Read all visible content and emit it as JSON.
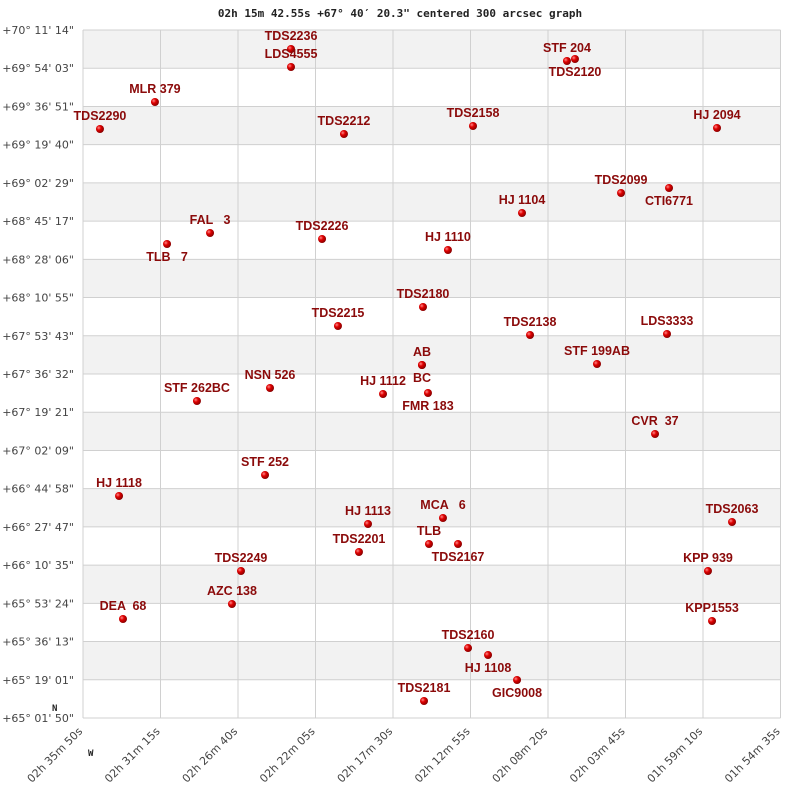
{
  "chart_data": {
    "type": "scatter",
    "title": "02h 15m 42.55s +67° 40′ 20.3\" centered 300 arcsec graph",
    "xlabel": "",
    "ylabel": "",
    "x_unit": "RA (hours)",
    "y_unit": "Dec (degrees)",
    "xlim": [
      2.59722,
      1.90972
    ],
    "ylim": [
      65.03056,
      70.18722
    ],
    "grid": true,
    "banded_rows": true,
    "compass": {
      "north": "N",
      "west": "W"
    },
    "x_ticks": [
      "02h 35m 50s",
      "02h 31m 15s",
      "02h 26m 40s",
      "02h 22m 05s",
      "02h 17m 30s",
      "02h 12m 55s",
      "02h 08m 20s",
      "02h 03m 45s",
      "01h 59m 10s",
      "01h 54m 35s"
    ],
    "y_ticks": [
      "+70° 11' 14\"",
      "+69° 54' 03\"",
      "+69° 36' 51\"",
      "+69° 19' 40\"",
      "+69° 02' 29\"",
      "+68° 45' 17\"",
      "+68° 28' 06\"",
      "+68° 10' 55\"",
      "+67° 53' 43\"",
      "+67° 36' 32\"",
      "+67° 19' 21\"",
      "+67° 02' 09\"",
      "+66° 44' 58\"",
      "+66° 27' 47\"",
      "+66° 10' 35\"",
      "+65° 53' 24\"",
      "+65° 36' 13\"",
      "+65° 19' 01\"",
      "+65° 01' 50\""
    ],
    "colors": {
      "point": "#d00000",
      "label": "#8b0a0a",
      "band": "#f2f2f2",
      "grid": "#d0d0d0"
    },
    "points": [
      {
        "name": "TDS2236",
        "ra": 2.3922,
        "dec": 70.0448
      },
      {
        "name": "LDS4555",
        "ra": 2.3922,
        "dec": 69.9099
      },
      {
        "name": "STF 204",
        "ra": 2.1202,
        "dec": 69.9549
      },
      {
        "name": "TDS2120",
        "ra": 2.1123,
        "dec": 69.9699
      },
      {
        "name": "MLR 379",
        "ra": 2.5263,
        "dec": 69.6476
      },
      {
        "name": "TDS2290",
        "ra": 2.5805,
        "dec": 69.4452
      },
      {
        "name": "TDS2212",
        "ra": 2.34,
        "dec": 69.4077
      },
      {
        "name": "TDS2158",
        "ra": 2.2128,
        "dec": 69.4677
      },
      {
        "name": "HJ 2094",
        "ra": 1.9723,
        "dec": 69.4527
      },
      {
        "name": "TDS2099",
        "ra": 2.0669,
        "dec": 68.9655
      },
      {
        "name": "CTI6771",
        "ra": 2.0196,
        "dec": 69.003
      },
      {
        "name": "HJ 1104",
        "ra": 2.1645,
        "dec": 68.8156
      },
      {
        "name": "FAL   3",
        "ra": 2.472,
        "dec": 68.6657
      },
      {
        "name": "TLB   7",
        "ra": 2.5144,
        "dec": 68.5832
      },
      {
        "name": "TDS2226",
        "ra": 2.3616,
        "dec": 68.6207
      },
      {
        "name": "HJ 1110",
        "ra": 2.2375,
        "dec": 68.5383
      },
      {
        "name": "TDS2180",
        "ra": 2.2621,
        "dec": 68.111
      },
      {
        "name": "TDS2215",
        "ra": 2.3459,
        "dec": 67.9686
      },
      {
        "name": "TDS2138",
        "ra": 2.1566,
        "dec": 67.9012
      },
      {
        "name": "LDS3333",
        "ra": 2.0216,
        "dec": 67.9087
      },
      {
        "name": "AB",
        "ra": 2.2631,
        "dec": 67.6763
      },
      {
        "name": "BC",
        "ra": 2.2631,
        "dec": 67.6763
      },
      {
        "name": "STF 199AB",
        "ra": 2.0906,
        "dec": 67.6838
      },
      {
        "name": "STF 262BC",
        "ra": 2.4849,
        "dec": 67.4065
      },
      {
        "name": "NSN 526",
        "ra": 2.4129,
        "dec": 67.5039
      },
      {
        "name": "HJ 1112",
        "ra": 2.3015,
        "dec": 67.4589
      },
      {
        "name": "FMR 183",
        "ra": 2.2572,
        "dec": 67.4664
      },
      {
        "name": "CVR  37",
        "ra": 2.0334,
        "dec": 67.1591
      },
      {
        "name": "STF 252",
        "ra": 2.4178,
        "dec": 66.8518
      },
      {
        "name": "HJ 1118",
        "ra": 2.5617,
        "dec": 66.6944
      },
      {
        "name": "HJ 1113",
        "ra": 2.3163,
        "dec": 66.4845
      },
      {
        "name": "MCA   6",
        "ra": 2.2424,
        "dec": 66.5295
      },
      {
        "name": "TDS2063",
        "ra": 1.9575,
        "dec": 66.4995
      },
      {
        "name": "TDS2201",
        "ra": 2.3252,
        "dec": 66.2747
      },
      {
        "name": "TLB",
        "ra": 2.2562,
        "dec": 66.3346
      },
      {
        "name": "TDS2167",
        "ra": 2.2276,
        "dec": 66.3346
      },
      {
        "name": "TDS2249",
        "ra": 2.4415,
        "dec": 66.1323
      },
      {
        "name": "KPP 939",
        "ra": 1.9812,
        "dec": 66.1323
      },
      {
        "name": "AZC 138",
        "ra": 2.4504,
        "dec": 65.8849
      },
      {
        "name": "DEA  68",
        "ra": 2.5578,
        "dec": 65.7725
      },
      {
        "name": "KPP1553",
        "ra": 1.9772,
        "dec": 65.7575
      },
      {
        "name": "TDS2160",
        "ra": 2.2177,
        "dec": 65.5551
      },
      {
        "name": "HJ 1108",
        "ra": 2.198,
        "dec": 65.5027
      },
      {
        "name": "GIC9008",
        "ra": 2.1694,
        "dec": 65.3153
      },
      {
        "name": "TDS2181",
        "ra": 2.2611,
        "dec": 65.1579
      }
    ]
  }
}
